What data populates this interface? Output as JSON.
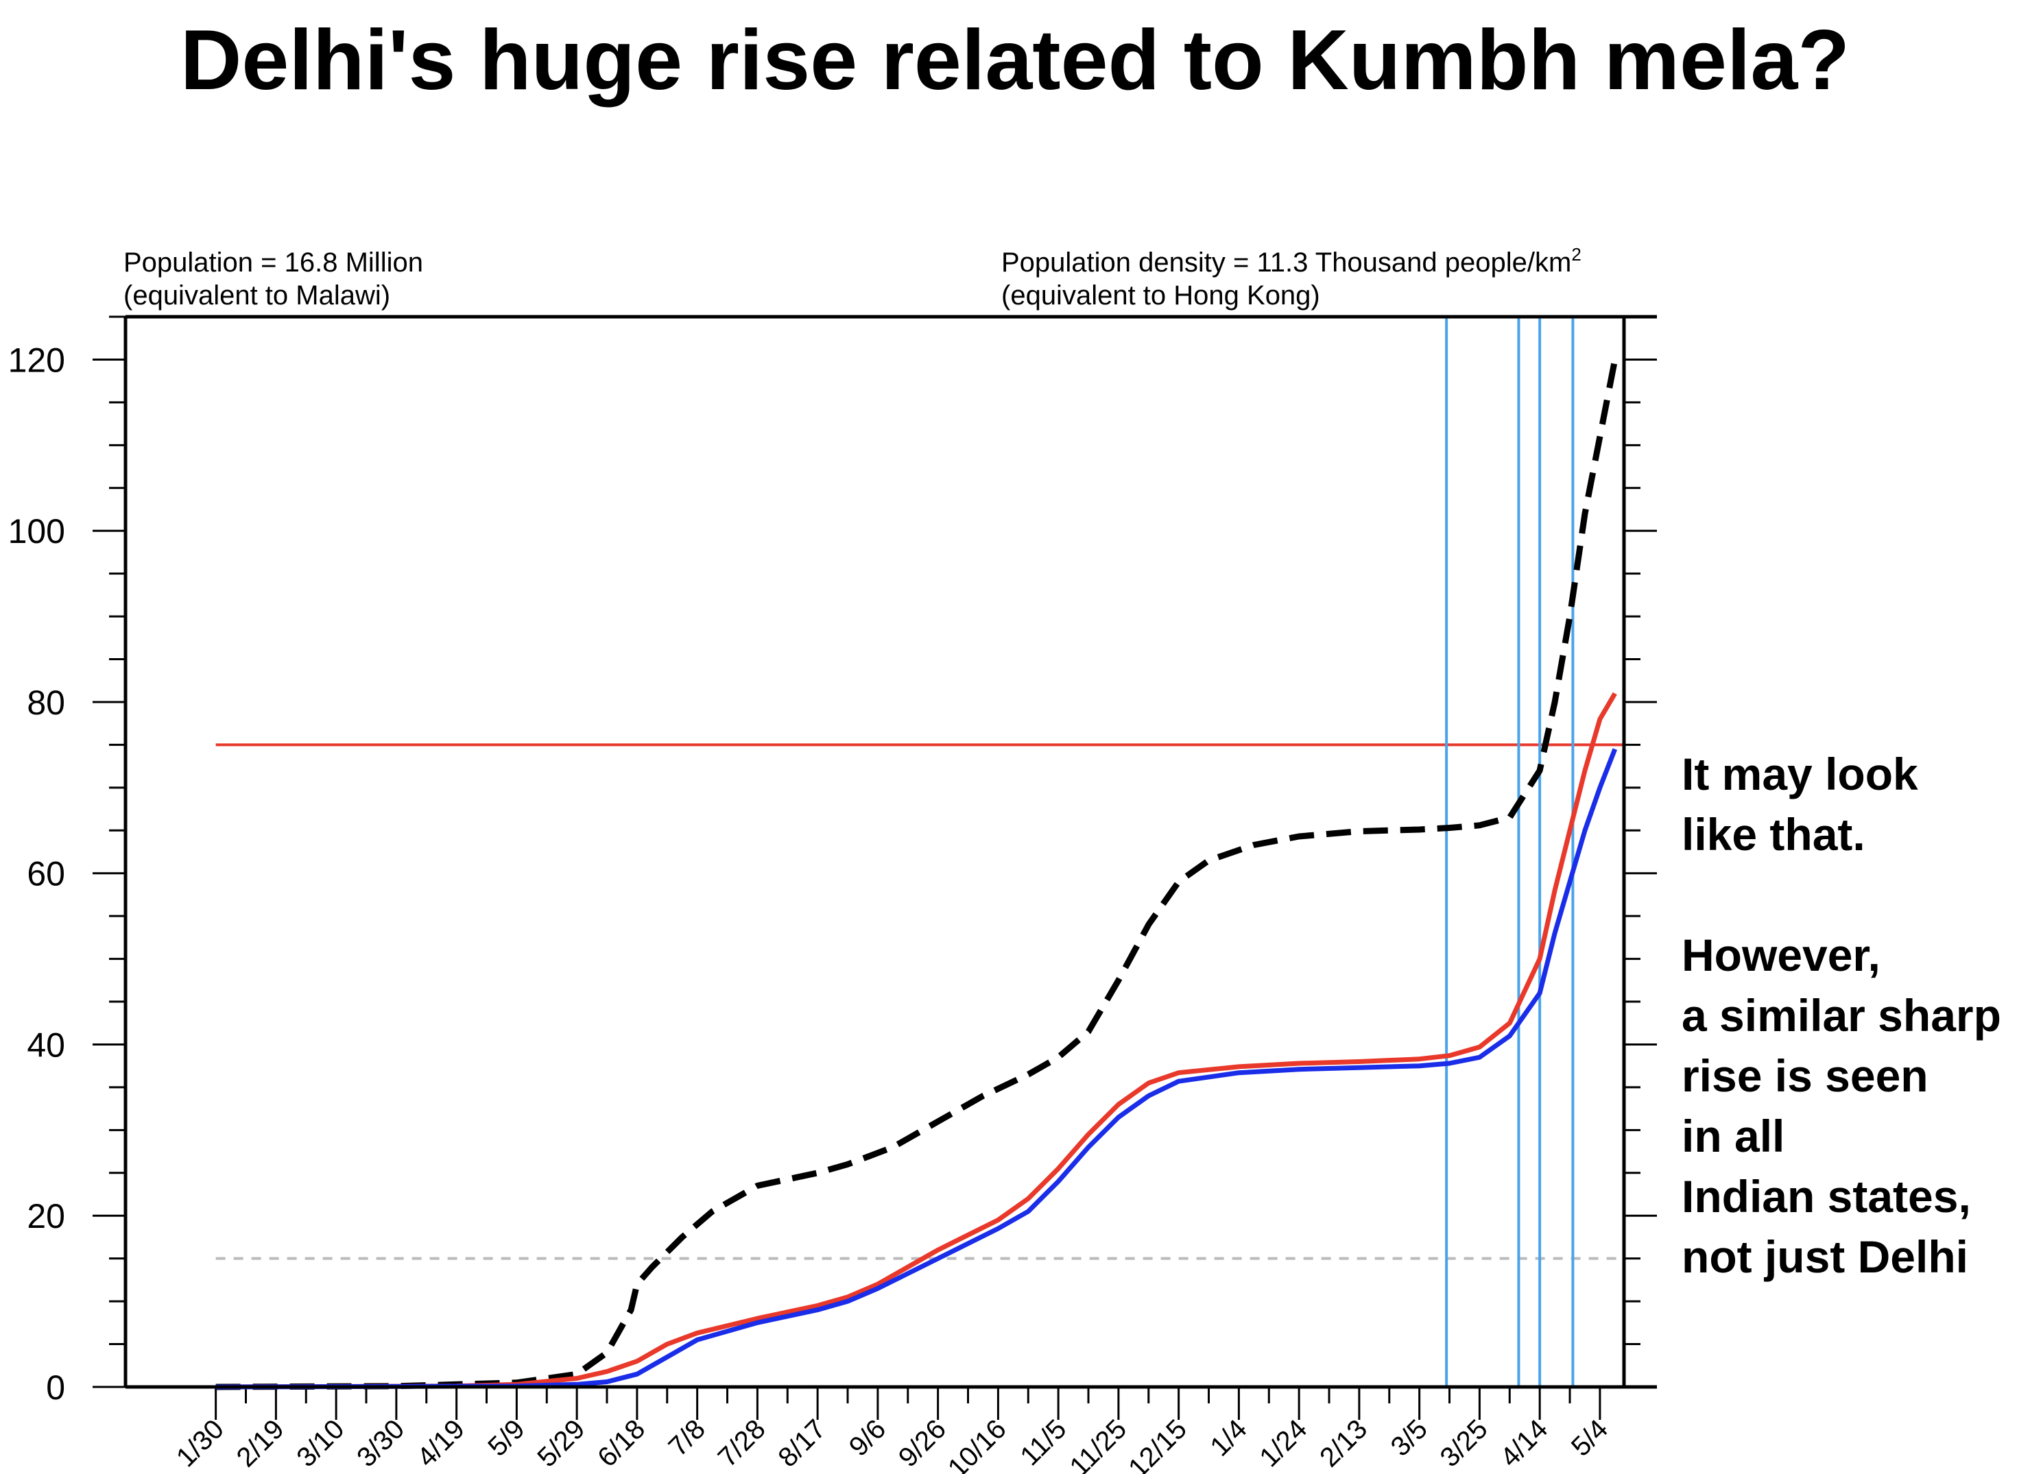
{
  "chart_data": {
    "type": "line",
    "title": "Delhi's huge rise related to Kumbh mela?",
    "info_left": [
      "Population = 16.8 Million",
      "(equivalent to Malawi)"
    ],
    "info_right_line1": "Population density = 11.3 Thousand people/km",
    "info_right_sup": "2",
    "info_right_line2": "(equivalent to Hong Kong)",
    "x_tick_labels": [
      "1/30",
      "2/19",
      "3/10",
      "3/30",
      "4/19",
      "5/9",
      "5/29",
      "6/18",
      "7/8",
      "7/28",
      "8/17",
      "9/6",
      "9/26",
      "10/16",
      "11/5",
      "11/25",
      "12/15",
      "1/4",
      "1/24",
      "2/13",
      "3/5",
      "3/25",
      "4/14",
      "5/4"
    ],
    "x_tick_days": [
      0,
      20,
      40,
      60,
      80,
      100,
      120,
      140,
      160,
      180,
      200,
      220,
      240,
      260,
      280,
      300,
      320,
      340,
      360,
      380,
      400,
      420,
      440,
      460
    ],
    "xlim_days": [
      -30,
      468
    ],
    "ylim": [
      0,
      125
    ],
    "y_ticks": [
      0,
      20,
      40,
      60,
      80,
      100,
      120
    ],
    "y_minor_step": 5,
    "x_start_date": "1/30",
    "series": [
      {
        "color": "#000000",
        "style": "dashed",
        "x_days": [
          0,
          60,
          100,
          120,
          130,
          138,
          140,
          145,
          155,
          165,
          180,
          200,
          210,
          225,
          240,
          255,
          270,
          280,
          290,
          300,
          310,
          320,
          330,
          345,
          360,
          380,
          400,
          410,
          420,
          430,
          440,
          445,
          450,
          455,
          460,
          465
        ],
        "values": [
          0,
          0.1,
          0.5,
          1.5,
          4,
          9,
          12,
          14,
          17.5,
          20.5,
          23.5,
          25,
          26,
          28,
          31,
          34,
          36.5,
          38.5,
          41.5,
          47.5,
          54,
          59,
          61.5,
          63.3,
          64.3,
          64.9,
          65.1,
          65.3,
          65.6,
          66.5,
          72,
          80,
          90,
          102,
          111,
          120
        ]
      },
      {
        "color": "#e8392b",
        "style": "solid",
        "x_days": [
          0,
          80,
          100,
          120,
          130,
          140,
          150,
          160,
          180,
          200,
          210,
          220,
          240,
          260,
          270,
          280,
          290,
          300,
          310,
          320,
          340,
          360,
          380,
          400,
          410,
          420,
          430,
          440,
          445,
          450,
          455,
          460,
          465
        ],
        "values": [
          0,
          0.1,
          0.3,
          1,
          1.8,
          3,
          5,
          6.3,
          8,
          9.5,
          10.5,
          12,
          16,
          19.5,
          22,
          25.5,
          29.5,
          33,
          35.5,
          36.7,
          37.4,
          37.8,
          38,
          38.3,
          38.7,
          39.7,
          42.5,
          50,
          58,
          65,
          72,
          78,
          81
        ]
      },
      {
        "color": "#1a2de8",
        "style": "solid",
        "x_days": [
          0,
          100,
          120,
          130,
          140,
          150,
          160,
          180,
          200,
          210,
          220,
          240,
          260,
          270,
          280,
          290,
          300,
          310,
          320,
          340,
          360,
          380,
          400,
          410,
          420,
          430,
          440,
          445,
          450,
          455,
          460,
          465
        ],
        "values": [
          0,
          0.1,
          0.3,
          0.6,
          1.5,
          3.5,
          5.5,
          7.5,
          9,
          10,
          11.5,
          15,
          18.5,
          20.5,
          24,
          28,
          31.5,
          34,
          35.7,
          36.7,
          37.1,
          37.3,
          37.5,
          37.8,
          38.5,
          41,
          46,
          53,
          59,
          65,
          70,
          74.5
        ]
      }
    ],
    "hlines": [
      {
        "value": 75,
        "color": "#e8392b",
        "style": "solid"
      },
      {
        "value": 15,
        "color": "#bbbbbb",
        "style": "dashed"
      }
    ],
    "vlines": {
      "color": "#4aa3ea",
      "x_days": [
        409,
        433,
        440,
        451
      ]
    },
    "annotation_lines": [
      "It may look",
      "like that.",
      "",
      "However,",
      "a similar sharp",
      "rise is seen",
      "in all",
      "Indian states,",
      "not just Delhi"
    ]
  }
}
